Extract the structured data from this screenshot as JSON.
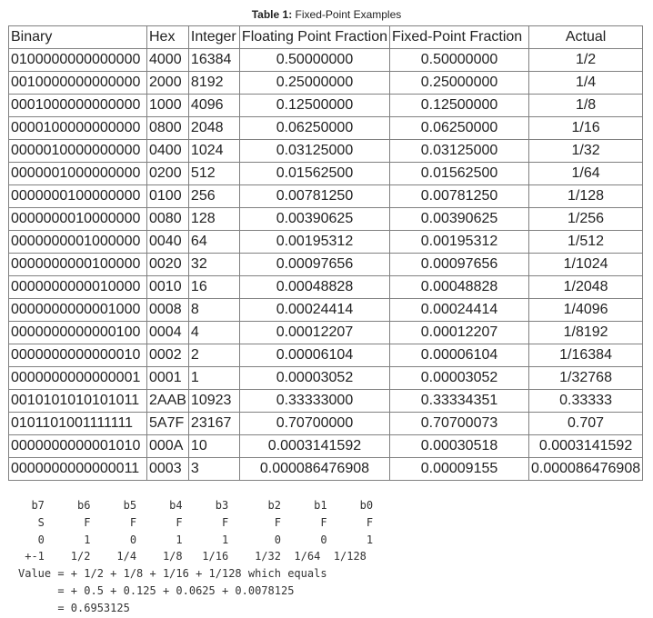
{
  "caption": {
    "label": "Table 1:",
    "text": "Fixed-Point Examples"
  },
  "table": {
    "headers": [
      "Binary",
      "Hex",
      "Integer",
      "Floating Point Fraction",
      "Fixed-Point Fraction",
      "Actual"
    ],
    "rows": [
      [
        "0100000000000000",
        "4000",
        "16384",
        "0.50000000",
        "0.50000000",
        "1/2"
      ],
      [
        "0010000000000000",
        "2000",
        "8192",
        "0.25000000",
        "0.25000000",
        "1/4"
      ],
      [
        "0001000000000000",
        "1000",
        "4096",
        "0.12500000",
        "0.12500000",
        "1/8"
      ],
      [
        "0000100000000000",
        "0800",
        "2048",
        "0.06250000",
        "0.06250000",
        "1/16"
      ],
      [
        "0000010000000000",
        "0400",
        "1024",
        "0.03125000",
        "0.03125000",
        "1/32"
      ],
      [
        "0000001000000000",
        "0200",
        "512",
        "0.01562500",
        "0.01562500",
        "1/64"
      ],
      [
        "0000000100000000",
        "0100",
        "256",
        "0.00781250",
        "0.00781250",
        "1/128"
      ],
      [
        "0000000010000000",
        "0080",
        "128",
        "0.00390625",
        "0.00390625",
        "1/256"
      ],
      [
        "0000000001000000",
        "0040",
        "64",
        "0.00195312",
        "0.00195312",
        "1/512"
      ],
      [
        "0000000000100000",
        "0020",
        "32",
        "0.00097656",
        "0.00097656",
        "1/1024"
      ],
      [
        "0000000000010000",
        "0010",
        "16",
        "0.00048828",
        "0.00048828",
        "1/2048"
      ],
      [
        "0000000000001000",
        "0008",
        "8",
        "0.00024414",
        "0.00024414",
        "1/4096"
      ],
      [
        "0000000000000100",
        "0004",
        "4",
        "0.00012207",
        "0.00012207",
        "1/8192"
      ],
      [
        "0000000000000010",
        "0002",
        "2",
        "0.00006104",
        "0.00006104",
        "1/16384"
      ],
      [
        "0000000000000001",
        "0001",
        "1",
        "0.00003052",
        "0.00003052",
        "1/32768"
      ],
      [
        "0010101010101011",
        "2AAB",
        "10923",
        "0.33333000",
        "0.33334351",
        "0.33333"
      ],
      [
        "0101101001111111",
        "5A7F",
        "23167",
        "0.70700000",
        "0.70700073",
        "0.707"
      ],
      [
        "0000000000001010",
        "000A",
        "10",
        "0.0003141592",
        "0.00030518",
        "0.0003141592"
      ],
      [
        "0000000000000011",
        "0003",
        "3",
        "0.000086476908",
        "0.00009155",
        "0.000086476908"
      ]
    ]
  },
  "bit_example": {
    "lines": [
      "  b7     b6     b5     b4     b3      b2     b1     b0",
      "   S      F      F      F      F       F      F      F",
      "   0      1      0      1      1       0      0      1",
      " +-1    1/2    1/4    1/8   1/16    1/32  1/64  1/128",
      "Value = + 1/2 + 1/8 + 1/16 + 1/128 which equals",
      "      = + 0.5 + 0.125 + 0.0625 + 0.0078125",
      "      = 0.6953125"
    ]
  }
}
